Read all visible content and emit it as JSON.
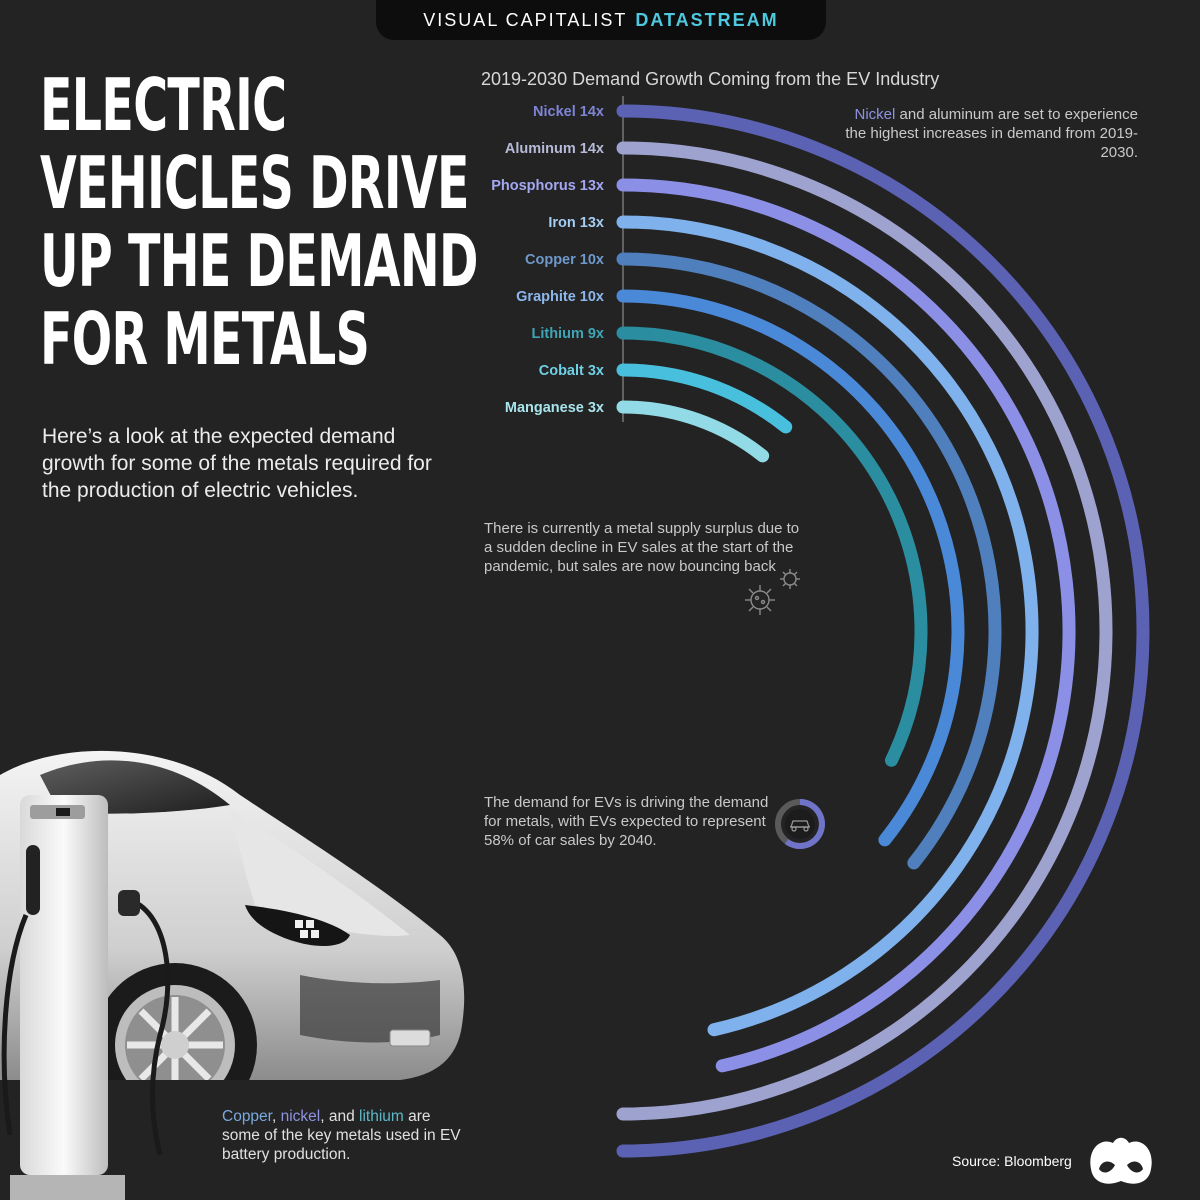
{
  "banner": {
    "brand": "VISUAL CAPITALIST",
    "product": "DATASTREAM"
  },
  "title_lines": [
    "ELECTRIC",
    "VEHICLES DRIVE",
    "UP THE DEMAND",
    "FOR METALS"
  ],
  "intro": "Here’s a look at the expected demand growth for some of the metals required for the production of electric vehicles.",
  "chart_title": "2019-2030 Demand Growth Coming from the EV Industry",
  "notes": {
    "top_highlight": "Nickel",
    "top_rest": " and aluminum are set to experience the highest increases in demand from 2019-2030.",
    "middle": "There is currently a metal supply surplus due to a sudden decline in EV sales at the start of the pandemic, but sales are now bouncing back",
    "bottom": "The demand for EVs is driving the demand for metals, with EVs expected to represent 58% of car sales by 2040.",
    "car_copper": "Copper",
    "car_sep1": ", ",
    "car_nickel": "nickel",
    "car_sep2": ", and ",
    "car_lithium": "lithium",
    "car_rest": " are some of the key metals used in EV battery production."
  },
  "source": "Source: Bloomberg",
  "chart_data": {
    "type": "radial-bar",
    "title": "2019-2030 Demand Growth Coming from the EV Industry",
    "unit": "x",
    "categories": [
      "Nickel",
      "Aluminum",
      "Phosphorus",
      "Iron",
      "Copper",
      "Graphite",
      "Lithium",
      "Cobalt",
      "Manganese"
    ],
    "values": [
      14,
      14,
      13,
      13,
      10,
      10,
      9,
      3,
      3
    ],
    "labels": [
      "Nickel 14x",
      "Aluminum 14x",
      "Phosphorus 13x",
      "Iron 13x",
      "Copper 10x",
      "Graphite 10x",
      "Lithium 9x",
      "Cobalt 3x",
      "Manganese 3x"
    ],
    "colors": [
      "#5b62b4",
      "#9ea2cf",
      "#8b90e6",
      "#7fb2ec",
      "#4f7fbd",
      "#4a88d8",
      "#2b8ea0",
      "#48bfdc",
      "#92dbe6"
    ],
    "label_colors": [
      "#7f85d6",
      "#b7bad8",
      "#a4a8f0",
      "#a6cdf2",
      "#6f98cc",
      "#8cb7ec",
      "#3ea4b6",
      "#6fd0e6",
      "#a8e4ec"
    ],
    "value_max": 14
  }
}
